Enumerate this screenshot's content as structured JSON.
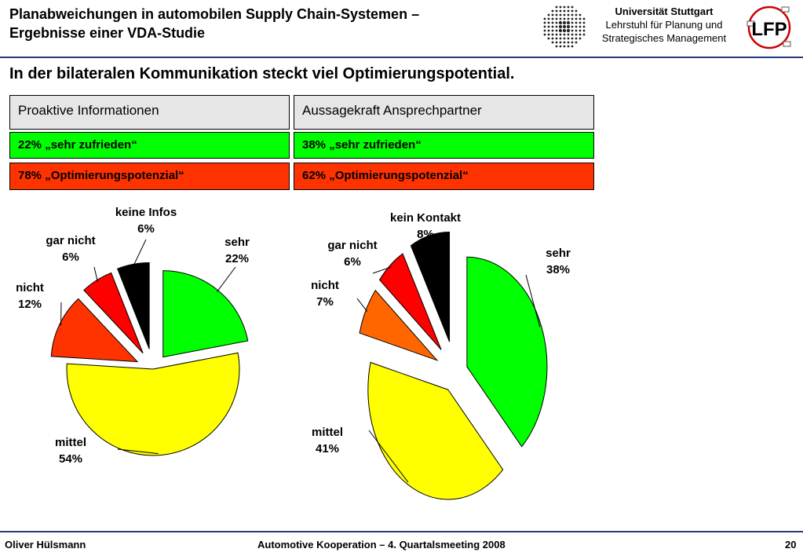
{
  "header": {
    "title_line1": "Planabweichungen in automobilen Supply Chain-Systemen –",
    "title_line2": "Ergebnisse einer VDA-Studie",
    "university": "Universität Stuttgart",
    "chair_line1": "Lehrstuhl für Planung und",
    "chair_line2": "Strategisches Management",
    "logo_text": "LFP"
  },
  "subtitle": "In der bilateralen Kommunikation steckt viel Optimierungspotential.",
  "panels": [
    {
      "title": "Proaktive Informationen",
      "green": "22% „sehr zufrieden“",
      "red": "78% „Optimierungspotenzial“"
    },
    {
      "title": "Aussagekraft Ansprechpartner",
      "green": "38% „sehr zufrieden“",
      "red": "62% „Optimierungspotenzial“"
    }
  ],
  "chart_data": [
    {
      "type": "pie",
      "title": "",
      "slices": [
        {
          "name": "sehr",
          "value": 22,
          "label": "22%",
          "color": "#00ff00"
        },
        {
          "name": "mittel",
          "value": 54,
          "label": "54%",
          "color": "#ffff00"
        },
        {
          "name": "nicht",
          "value": 12,
          "label": "12%",
          "color": "#ff3300"
        },
        {
          "name": "gar nicht",
          "value": 6,
          "label": "6%",
          "color": "#ff0000"
        },
        {
          "name": "keine Infos",
          "value": 6,
          "label": "6%",
          "color": "#000000"
        }
      ]
    },
    {
      "type": "pie",
      "title": "",
      "slices": [
        {
          "name": "sehr",
          "value": 38,
          "label": "38%",
          "color": "#00ff00"
        },
        {
          "name": "mittel",
          "value": 41,
          "label": "41%",
          "color": "#ffff00"
        },
        {
          "name": "nicht",
          "value": 7,
          "label": "7%",
          "color": "#ff6600"
        },
        {
          "name": "gar nicht",
          "value": 6,
          "label": "6%",
          "color": "#ff0000"
        },
        {
          "name": "kein Kontakt",
          "value": 8,
          "label": "8%",
          "color": "#000000"
        }
      ]
    }
  ],
  "footer": {
    "author": "Oliver Hülsmann",
    "event": "Automotive Kooperation – 4. Quartalsmeeting 2008",
    "page": "20"
  }
}
